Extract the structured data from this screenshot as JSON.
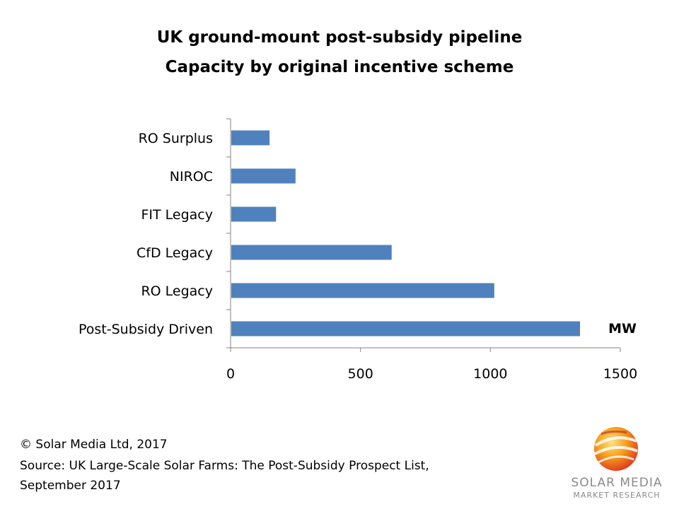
{
  "chart_data": {
    "type": "bar",
    "orientation": "horizontal",
    "title": "UK ground-mount post-subsidy pipeline",
    "subtitle": "Capacity by  original incentive scheme",
    "categories": [
      "RO Surplus",
      "NIROC",
      "FIT Legacy",
      "CfD Legacy",
      "RO Legacy",
      "Post-Subsidy Driven"
    ],
    "values": [
      150,
      250,
      175,
      620,
      1015,
      1345
    ],
    "xlim": [
      0,
      1500
    ],
    "xticks": [
      "0",
      "500",
      "1000",
      "1500"
    ],
    "unit_label": "MW",
    "bar_color": "#4f81bd",
    "grid": false
  },
  "footer": {
    "copyright": "© Solar Media Ltd, 2017",
    "source_line1": "Source: UK Large-Scale Solar Farms: The Post-Subsidy Prospect List,",
    "source_line2": "September 2017"
  },
  "logo": {
    "line1": "SOLAR MEDIA",
    "line2": "MARKET RESEARCH"
  }
}
